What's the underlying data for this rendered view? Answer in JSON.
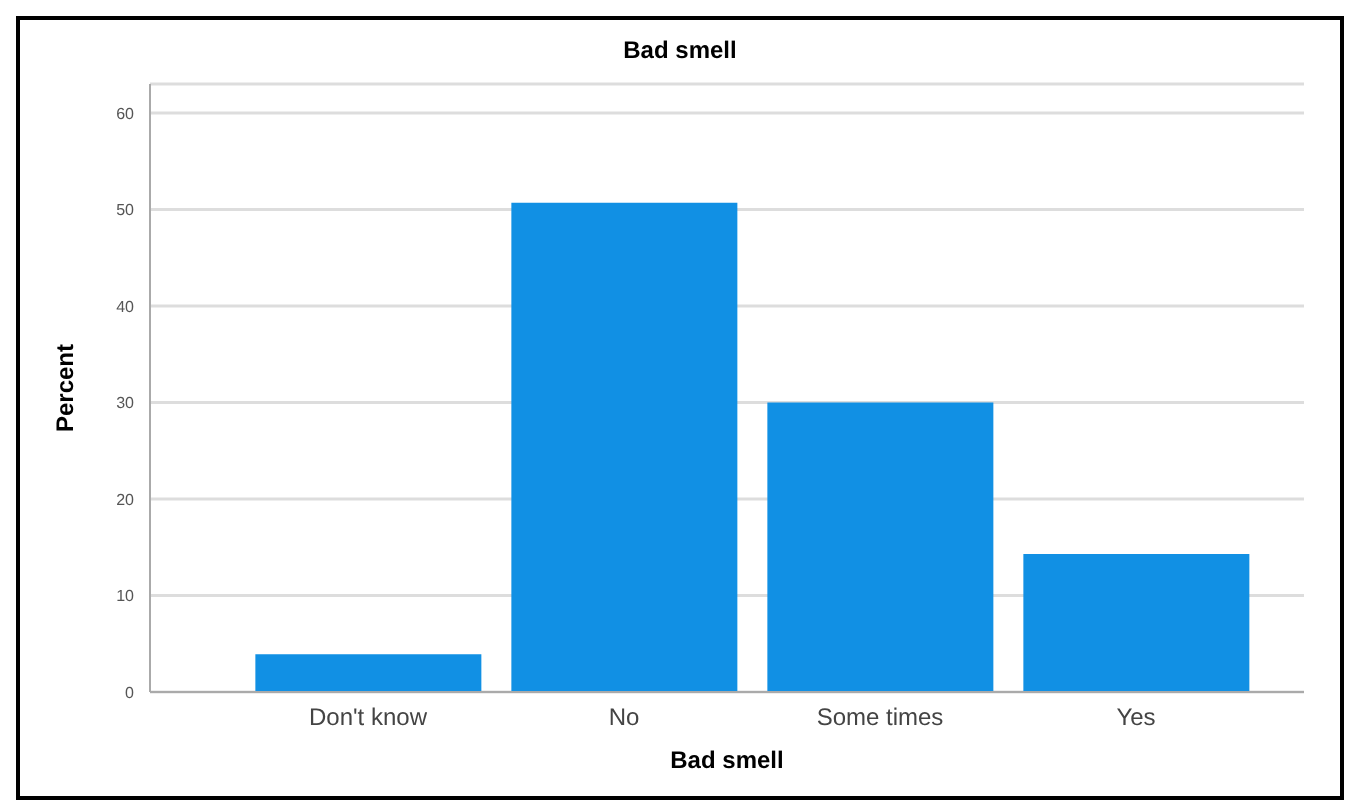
{
  "chart_data": {
    "type": "bar",
    "title": "Bad smell",
    "xlabel": "Bad smell",
    "ylabel": "Percent",
    "categories": [
      "Don't know",
      "No",
      "Some times",
      "Yes"
    ],
    "values": [
      3.9,
      50.7,
      30,
      14.3
    ],
    "color": "#1190e4",
    "ylim": [
      0,
      63
    ],
    "yticks": [
      0,
      10,
      20,
      30,
      40,
      50,
      60
    ],
    "grid": "y"
  }
}
